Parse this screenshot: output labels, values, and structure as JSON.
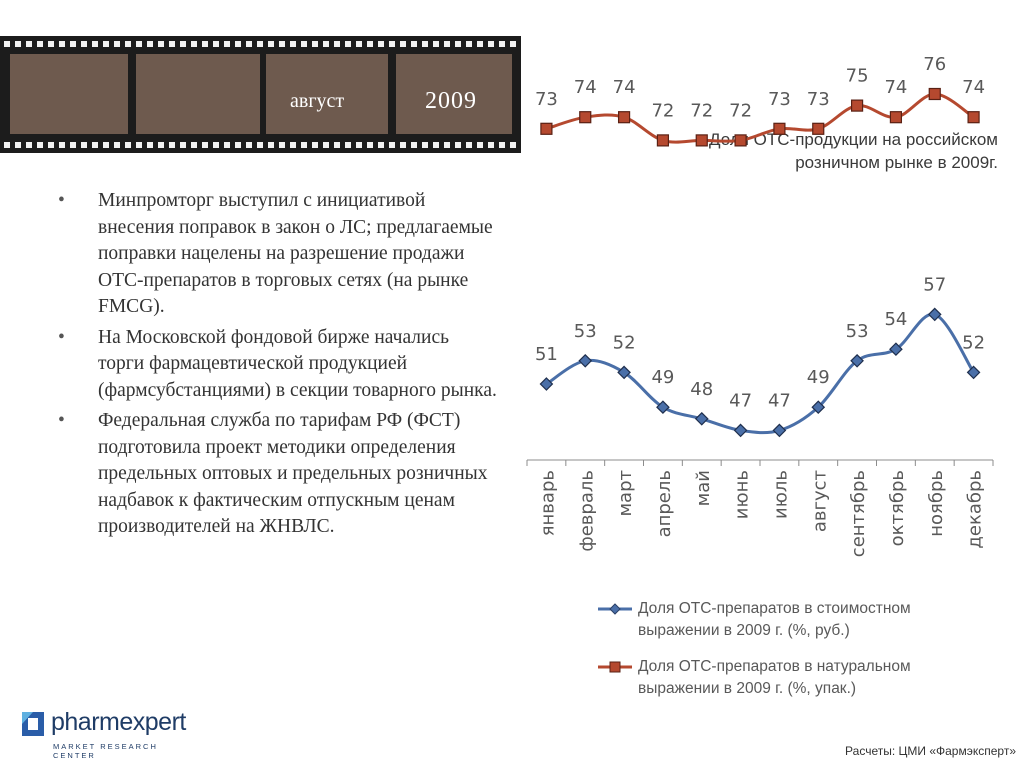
{
  "banner": {
    "month": "август",
    "year": "2009"
  },
  "chart_title": "Доля ОТС-продукции на российском розничном рынке в 2009г.",
  "bullets": [
    "Минпромторг выступил с инициативой внесения поправок в закон о ЛС; предлагаемые поправки нацелены на разрешение продажи ОТС-препаратов в торговых сетях (на рынке FMCG).",
    "На Московской фондовой бирже начались торги фармацевтической продукцией (фармсубстанциями) в секции товарного рынка.",
    "Федеральная служба по тарифам РФ (ФСТ) подготовила проект методики определения предельных оптовых и предельных розничных надбавок к фактическим отпускным ценам производителей на ЖНВЛС."
  ],
  "logo": {
    "name": "pharmexpert",
    "tagline": "MARKET RESEARCH CENTER"
  },
  "source": "Расчеты: ЦМИ «Фармэксперт»",
  "chart_data": {
    "type": "line",
    "categories": [
      "январь",
      "февраль",
      "март",
      "апрель",
      "май",
      "июнь",
      "июль",
      "август",
      "сентябрь",
      "октябрь",
      "ноябрь",
      "декабрь"
    ],
    "series": [
      {
        "name": "Доля ОТС-препаратов в стоимостном выражении в 2009 г. (%, руб.)",
        "color": "#4a6fa8",
        "marker": "diamond",
        "values": [
          51,
          53,
          52,
          49,
          48,
          47,
          47,
          49,
          53,
          54,
          57,
          52
        ]
      },
      {
        "name": "Доля ОТС-препаратов в натуральном выражении в 2009 г. (%, упак.)",
        "color": "#b5492f",
        "marker": "square",
        "values": [
          73,
          74,
          74,
          72,
          72,
          72,
          73,
          73,
          75,
          74,
          76,
          74
        ]
      }
    ],
    "data_labels": true,
    "grid": false,
    "legend_position": "bottom"
  }
}
